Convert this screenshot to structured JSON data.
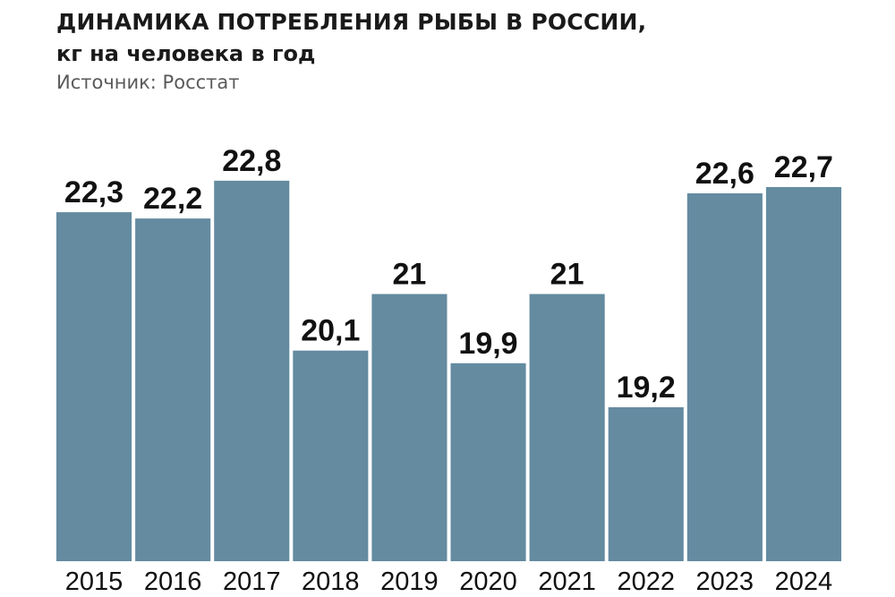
{
  "header": {
    "title": "ДИНАМИКА ПОТРЕБЛЕНИЯ РЫБЫ В РОССИИ,",
    "subtitle": "кг на человека в год",
    "source": "Источник: Росстат"
  },
  "colors": {
    "bar": "#648ba0",
    "text": "#111111"
  },
  "chart_data": {
    "type": "bar",
    "title": "ДИНАМИКА ПОТРЕБЛЕНИЯ РЫБЫ В РОССИИ,",
    "subtitle": "кг на человека в год",
    "categories": [
      "2015",
      "2016",
      "2017",
      "2018",
      "2019",
      "2020",
      "2021",
      "2022",
      "2023",
      "2024"
    ],
    "values": [
      22.3,
      22.2,
      22.8,
      20.1,
      21,
      19.9,
      21,
      19.2,
      22.6,
      22.7
    ],
    "value_labels": [
      "22,3",
      "22,2",
      "22,8",
      "20,1",
      "21",
      "19,9",
      "21",
      "19,2",
      "22,6",
      "22,7"
    ],
    "xlabel": "",
    "ylabel": "",
    "grid": false,
    "legend": "none"
  }
}
